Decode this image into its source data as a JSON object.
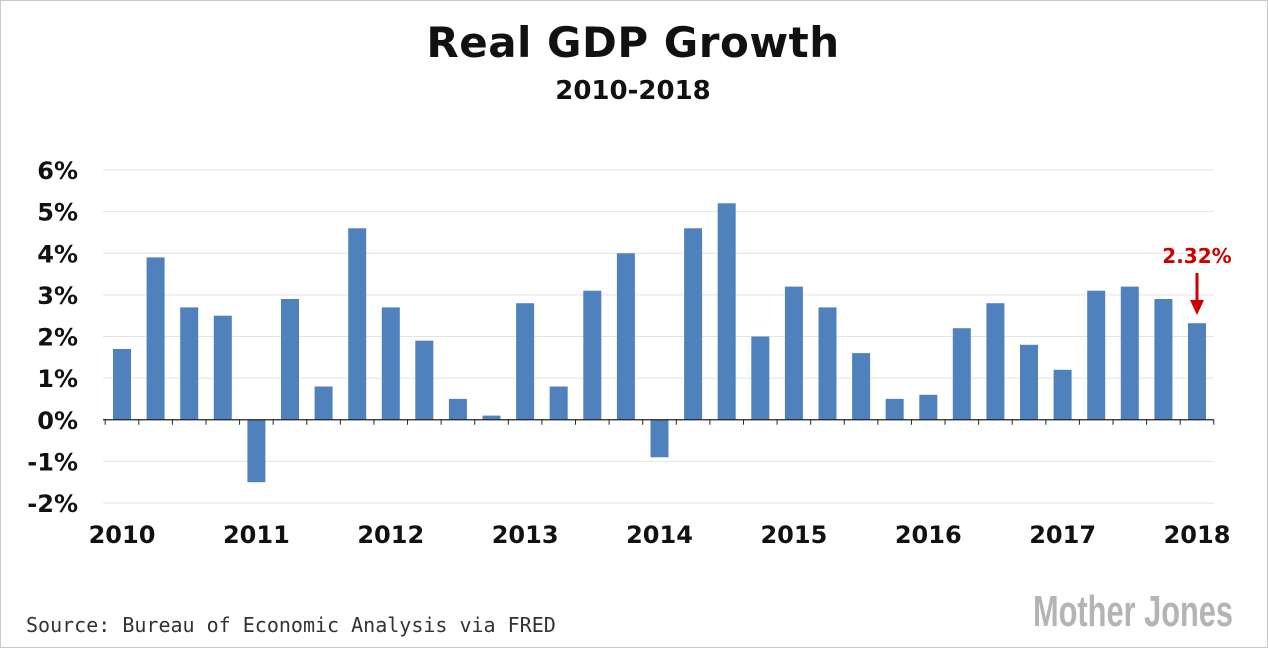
{
  "chart_data": {
    "type": "bar",
    "title": "Real GDP Growth",
    "subtitle": "2010-2018",
    "xlabel": "",
    "ylabel": "",
    "ylim": [
      -2,
      6
    ],
    "y_ticks": [
      6,
      5,
      4,
      3,
      2,
      1,
      0,
      -1,
      -2
    ],
    "y_tick_labels": [
      "6%",
      "5%",
      "4%",
      "3%",
      "2%",
      "1%",
      "0%",
      "-1%",
      "-2%"
    ],
    "x_tick_labels": [
      "2010",
      "2011",
      "2012",
      "2013",
      "2014",
      "2015",
      "2016",
      "2017",
      "2018"
    ],
    "grid": true,
    "bar_color": "#4f81bd",
    "categories": [
      "2010 Q1",
      "2010 Q2",
      "2010 Q3",
      "2010 Q4",
      "2011 Q1",
      "2011 Q2",
      "2011 Q3",
      "2011 Q4",
      "2012 Q1",
      "2012 Q2",
      "2012 Q3",
      "2012 Q4",
      "2013 Q1",
      "2013 Q2",
      "2013 Q3",
      "2013 Q4",
      "2014 Q1",
      "2014 Q2",
      "2014 Q3",
      "2014 Q4",
      "2015 Q1",
      "2015 Q2",
      "2015 Q3",
      "2015 Q4",
      "2016 Q1",
      "2016 Q2",
      "2016 Q3",
      "2016 Q4",
      "2017 Q1",
      "2017 Q2",
      "2017 Q3",
      "2017 Q4",
      "2018 Q1"
    ],
    "values": [
      1.7,
      3.9,
      2.7,
      2.5,
      -1.5,
      2.9,
      0.8,
      4.6,
      2.7,
      1.9,
      0.5,
      0.1,
      2.8,
      0.8,
      3.1,
      4.0,
      -0.9,
      4.6,
      5.2,
      2.0,
      3.2,
      2.7,
      1.6,
      0.5,
      0.6,
      2.2,
      2.8,
      1.8,
      1.2,
      3.1,
      3.2,
      2.9,
      2.32
    ],
    "annotation": {
      "text": "2.32%",
      "target_index": 32,
      "color": "#cc0000"
    }
  },
  "source": "Source: Bureau of Economic Analysis via FRED",
  "brand": "Mother Jones",
  "brand_color": "#b4b4b4"
}
